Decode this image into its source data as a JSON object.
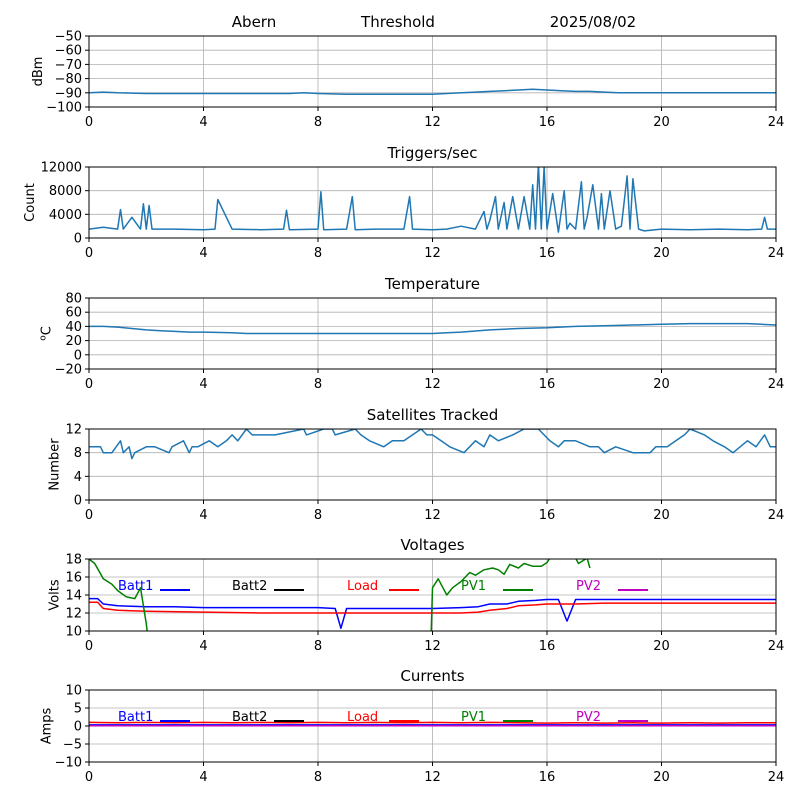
{
  "header": {
    "left": "Abern",
    "center": "Threshold",
    "right": "2025/08/02"
  },
  "colors": {
    "series": "#1f77b4",
    "grid": "#b0b0b0",
    "batt1": "#0000ff",
    "batt2": "#000000",
    "load": "#ff0000",
    "pv1": "#008000",
    "pv2": "#bf00bf"
  },
  "chart_data": [
    {
      "type": "line",
      "title": "",
      "ylabel": "dBm",
      "xlim": [
        0,
        24
      ],
      "xticks": [
        0,
        4,
        8,
        12,
        16,
        20,
        24
      ],
      "ylim": [
        -100,
        -50
      ],
      "yticks": [
        -100,
        -90,
        -80,
        -70,
        -60,
        -50
      ],
      "grid": true,
      "series": [
        {
          "color": "#1f77b4",
          "x": [
            0,
            0.5,
            1,
            2,
            3,
            4,
            5,
            6,
            7,
            7.5,
            8,
            9,
            10,
            11,
            12,
            12.5,
            13,
            13.5,
            14,
            14.5,
            15,
            15.5,
            16,
            16.5,
            17,
            17.5,
            18,
            18.5,
            19,
            20,
            21,
            22,
            23,
            24
          ],
          "y": [
            -90,
            -89.5,
            -90,
            -90.5,
            -90.5,
            -90.5,
            -90.5,
            -90.5,
            -90.5,
            -90,
            -90.5,
            -91,
            -91,
            -91,
            -91,
            -90.5,
            -90,
            -89.5,
            -89,
            -88.5,
            -88,
            -87.5,
            -88,
            -88.5,
            -89,
            -89,
            -89.5,
            -90,
            -90,
            -90,
            -90,
            -90,
            -90,
            -90
          ]
        }
      ]
    },
    {
      "type": "line",
      "title": "Triggers/sec",
      "ylabel": "Count",
      "xlim": [
        0,
        24
      ],
      "xticks": [
        0,
        4,
        8,
        12,
        16,
        20,
        24
      ],
      "ylim": [
        0,
        12000
      ],
      "yticks": [
        0,
        4000,
        8000,
        12000
      ],
      "grid": true,
      "series": [
        {
          "color": "#1f77b4",
          "x": [
            0,
            0.5,
            1,
            1.1,
            1.2,
            1.5,
            1.8,
            1.9,
            2.0,
            2.1,
            2.2,
            3,
            4,
            4.4,
            4.5,
            5,
            6,
            6.8,
            6.9,
            7,
            8,
            8.1,
            8.2,
            9,
            9.2,
            9.3,
            10,
            11,
            11.2,
            11.3,
            12,
            12.5,
            13,
            13.5,
            13.8,
            13.9,
            14,
            14.2,
            14.3,
            14.5,
            14.6,
            14.8,
            15,
            15.2,
            15.4,
            15.5,
            15.6,
            15.7,
            15.8,
            15.9,
            16,
            16.2,
            16.4,
            16.6,
            16.7,
            16.8,
            17,
            17.2,
            17.3,
            17.4,
            17.6,
            17.8,
            17.9,
            18,
            18.2,
            18.4,
            18.6,
            18.8,
            18.9,
            19,
            19.2,
            19.4,
            20,
            21,
            22,
            23,
            23.5,
            23.6,
            23.7,
            24
          ],
          "y": [
            1500,
            1800,
            1500,
            4800,
            1500,
            3500,
            1500,
            5800,
            1500,
            5500,
            1500,
            1500,
            1400,
            1500,
            6500,
            1500,
            1400,
            1500,
            4700,
            1400,
            1500,
            7800,
            1400,
            1500,
            7000,
            1400,
            1500,
            1500,
            7000,
            1500,
            1400,
            1500,
            2000,
            1500,
            4500,
            1500,
            3000,
            7000,
            1500,
            6000,
            1500,
            7000,
            1500,
            7000,
            1500,
            9000,
            1500,
            12500,
            1500,
            12000,
            1500,
            7500,
            1000,
            8000,
            1500,
            2500,
            1500,
            9500,
            1500,
            3500,
            9000,
            1500,
            7500,
            1500,
            8000,
            1500,
            2000,
            10500,
            1500,
            10000,
            1500,
            1200,
            1500,
            1400,
            1500,
            1400,
            1500,
            3500,
            1500,
            1500
          ]
        }
      ]
    },
    {
      "type": "line",
      "title": "Temperature",
      "ylabel": "oC",
      "xlim": [
        0,
        24
      ],
      "xticks": [
        0,
        4,
        8,
        12,
        16,
        20,
        24
      ],
      "ylim": [
        -20,
        80
      ],
      "yticks": [
        -20,
        0,
        20,
        40,
        60,
        80
      ],
      "grid": true,
      "series": [
        {
          "color": "#1f77b4",
          "x": [
            0,
            0.5,
            1,
            1.5,
            2,
            2.5,
            3,
            3.5,
            4,
            5,
            5.5,
            6,
            7,
            8,
            9,
            10,
            11,
            12,
            12.5,
            13,
            14,
            15,
            16,
            17,
            18,
            19,
            20,
            21,
            22,
            23,
            23.5,
            24
          ],
          "y": [
            40,
            40,
            39,
            37,
            35,
            34,
            33,
            32,
            32,
            31,
            30,
            30,
            30,
            30,
            30,
            30,
            30,
            30,
            31,
            32,
            35,
            37,
            38,
            40,
            41,
            42,
            43,
            44,
            44,
            44,
            43,
            42
          ]
        }
      ]
    },
    {
      "type": "line",
      "title": "Satellites Tracked",
      "ylabel": "Number",
      "xlim": [
        0,
        24
      ],
      "xticks": [
        0,
        4,
        8,
        12,
        16,
        20,
        24
      ],
      "ylim": [
        0,
        12
      ],
      "yticks": [
        0,
        4,
        8,
        12
      ],
      "grid": true,
      "series": [
        {
          "color": "#1f77b4",
          "x": [
            0,
            0.4,
            0.5,
            0.8,
            1.1,
            1.2,
            1.4,
            1.5,
            1.6,
            2.0,
            2.3,
            2.8,
            2.9,
            3.3,
            3.5,
            3.6,
            3.8,
            4.2,
            4.5,
            4.8,
            5,
            5.2,
            5.5,
            5.7,
            6.5,
            7.5,
            7.6,
            8.2,
            8.5,
            8.6,
            9.3,
            9.5,
            9.8,
            10.3,
            10.6,
            11,
            11.3,
            11.6,
            11.8,
            12,
            12.3,
            12.6,
            13.1,
            13.5,
            13.8,
            14,
            14.3,
            14.8,
            15.2,
            15.7,
            15.9,
            16.1,
            16.4,
            16.6,
            17,
            17.5,
            17.8,
            18,
            18.4,
            19,
            19.6,
            19.8,
            20.2,
            20.5,
            20.8,
            21,
            21.5,
            21.8,
            22.2,
            22.5,
            23,
            23.3,
            23.6,
            23.8,
            24
          ],
          "y": [
            9,
            9,
            8,
            8,
            10,
            8,
            9,
            7,
            8,
            9,
            9,
            8,
            9,
            10,
            8,
            9,
            9,
            10,
            9,
            10,
            11,
            10,
            12,
            11,
            11,
            12,
            11,
            12,
            12,
            11,
            12,
            11,
            10,
            9,
            10,
            10,
            11,
            12,
            11,
            11,
            10,
            9,
            8,
            10,
            9,
            11,
            10,
            11,
            12,
            12,
            11,
            10,
            9,
            10,
            10,
            9,
            9,
            8,
            9,
            8,
            8,
            9,
            9,
            10,
            11,
            12,
            11,
            10,
            9,
            8,
            10,
            9,
            11,
            9,
            9
          ]
        }
      ]
    },
    {
      "type": "line",
      "title": "Voltages",
      "ylabel": "Volts",
      "xlim": [
        0,
        24
      ],
      "xticks": [
        0,
        4,
        8,
        12,
        16,
        20,
        24
      ],
      "ylim": [
        10,
        18
      ],
      "yticks": [
        10,
        12,
        14,
        16,
        18
      ],
      "grid": true,
      "legend_placement": "top",
      "series": [
        {
          "name": "Batt1",
          "color": "#0000ff",
          "x": [
            0,
            0.3,
            0.5,
            1,
            2,
            3,
            4,
            6,
            8,
            8.6,
            8.8,
            9.0,
            10,
            12,
            13,
            13.6,
            14,
            14.6,
            15,
            15.6,
            16,
            16.4,
            16.7,
            17,
            18,
            20,
            22,
            24
          ],
          "y": [
            13.6,
            13.6,
            13.0,
            12.8,
            12.7,
            12.7,
            12.6,
            12.6,
            12.6,
            12.5,
            10.3,
            12.5,
            12.5,
            12.5,
            12.6,
            12.7,
            13.0,
            13.0,
            13.3,
            13.4,
            13.5,
            13.5,
            11.1,
            13.5,
            13.5,
            13.5,
            13.5,
            13.5
          ]
        },
        {
          "name": "Load",
          "color": "#ff0000",
          "x": [
            0,
            0.3,
            0.5,
            1,
            2,
            4,
            6,
            8,
            10,
            12,
            13,
            13.6,
            14,
            14.6,
            15,
            15.6,
            16,
            16.4,
            17,
            18,
            20,
            22,
            24
          ],
          "y": [
            13.2,
            13.2,
            12.5,
            12.3,
            12.2,
            12.1,
            12.0,
            12.0,
            12.0,
            12.0,
            12.0,
            12.1,
            12.3,
            12.5,
            12.8,
            12.9,
            13.0,
            13.0,
            13.0,
            13.1,
            13.1,
            13.1,
            13.1
          ]
        },
        {
          "name": "PV1",
          "color": "#008000",
          "x": [
            0,
            0.2,
            0.5,
            0.8,
            1.0,
            1.3,
            1.6,
            1.8,
            2.0,
            2.05,
            11.95,
            12.0,
            12.2,
            12.5,
            12.7,
            13.0,
            13.3,
            13.5,
            13.8,
            14.1,
            14.3,
            14.5,
            14.7,
            15.0,
            15.2,
            15.5,
            15.8,
            16.0,
            16.1,
            17.0,
            17.1,
            17.4,
            17.5
          ],
          "y": [
            18,
            17.5,
            15.8,
            15.2,
            14.5,
            13.8,
            13.6,
            14.8,
            10.8,
            9.5,
            9.5,
            14.8,
            15.8,
            14.0,
            14.8,
            15.5,
            16.5,
            16.2,
            16.8,
            17.0,
            16.8,
            16.3,
            17.4,
            17.0,
            17.5,
            17.2,
            17.2,
            17.6,
            18.1,
            18.1,
            17.5,
            18.1,
            17.0
          ]
        }
      ],
      "legend": [
        "Batt1",
        "Batt2",
        "Load",
        "PV1",
        "PV2"
      ]
    },
    {
      "type": "line",
      "title": "Currents",
      "ylabel": "Amps",
      "xlim": [
        0,
        24
      ],
      "xticks": [
        0,
        4,
        8,
        12,
        16,
        20,
        24
      ],
      "ylim": [
        -10,
        10
      ],
      "yticks": [
        -10,
        -5,
        0,
        5,
        10
      ],
      "grid": true,
      "legend_placement": "top",
      "series": [
        {
          "name": "Load",
          "color": "#ff0000",
          "x": [
            0,
            1,
            2,
            3,
            4,
            5,
            6,
            7,
            8,
            9,
            10,
            11,
            12,
            13,
            14,
            15,
            16,
            17,
            18,
            19,
            20,
            21,
            22,
            23,
            24
          ],
          "y": [
            1.0,
            0.9,
            1.0,
            0.9,
            1.0,
            0.9,
            1.0,
            0.9,
            1.0,
            0.9,
            1.0,
            0.9,
            1.0,
            0.9,
            1.0,
            0.9,
            0.8,
            0.9,
            0.8,
            0.9,
            0.8,
            0.9,
            0.8,
            0.9,
            0.9
          ]
        },
        {
          "name": "Batt1",
          "color": "#0000ff",
          "x": [
            0,
            24
          ],
          "y": [
            0.3,
            0.3
          ]
        },
        {
          "name": "PV2",
          "color": "#bf00bf",
          "x": [
            0,
            24
          ],
          "y": [
            0.05,
            0.05
          ]
        }
      ],
      "legend": [
        "Batt1",
        "Batt2",
        "Load",
        "PV1",
        "PV2"
      ]
    }
  ]
}
